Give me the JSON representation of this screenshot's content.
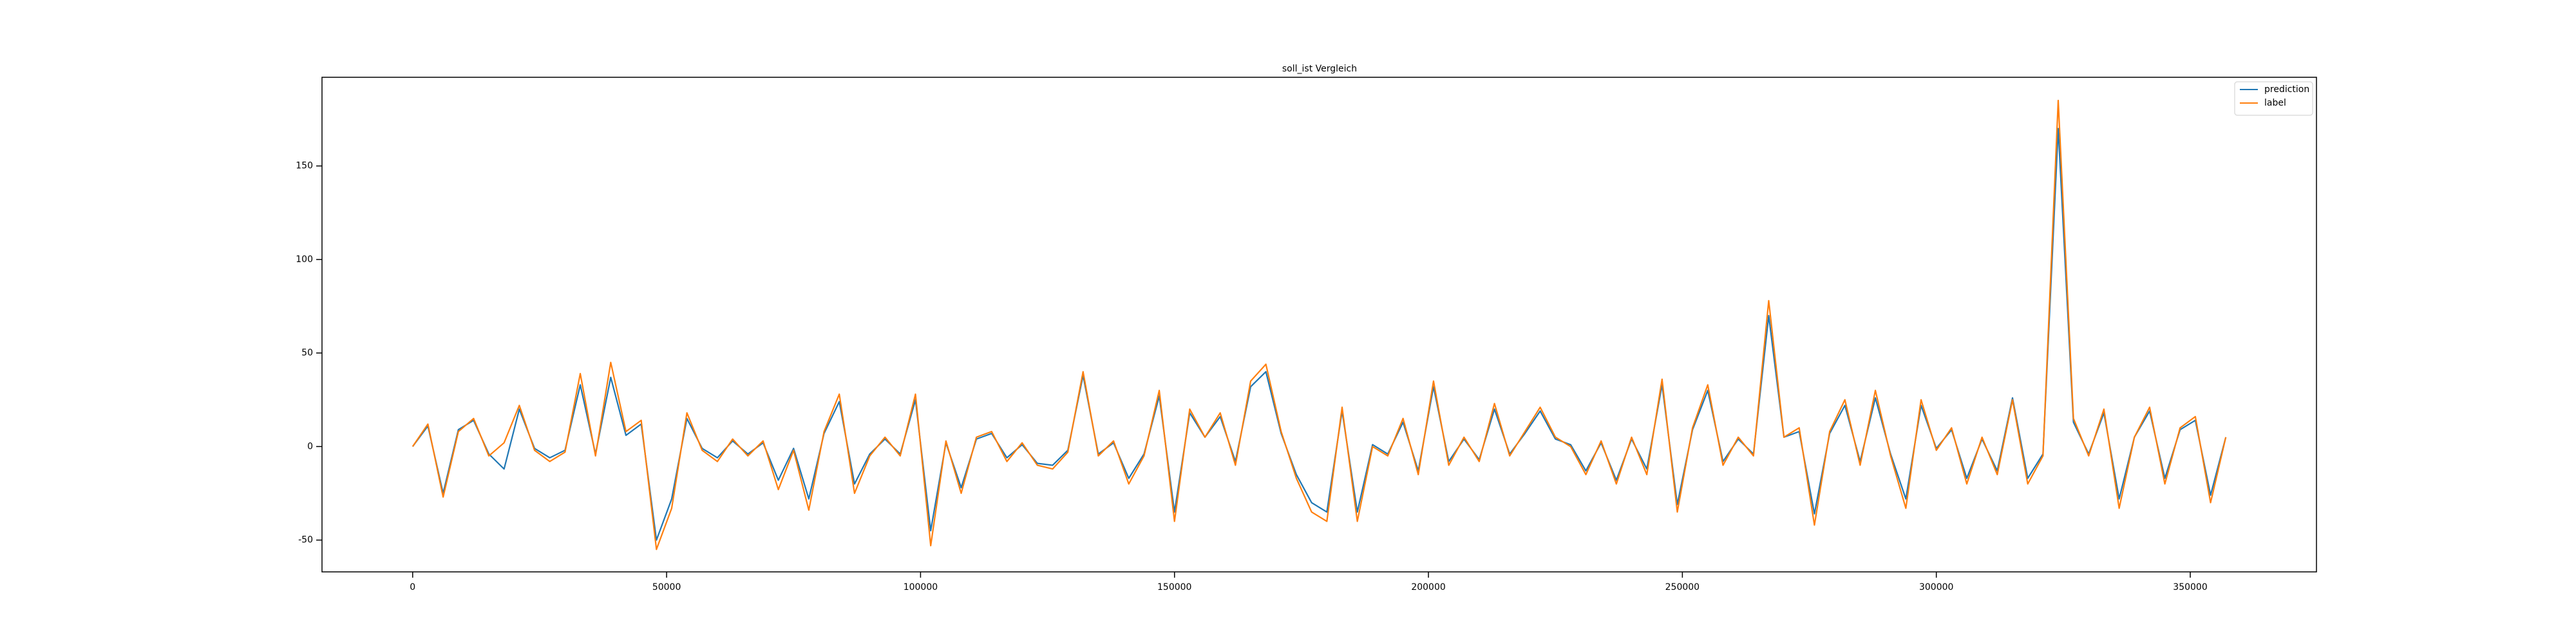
{
  "chart_data": {
    "type": "line",
    "title": "soll_ist Vergleich",
    "title_color": "#ff0000",
    "x": [
      0,
      3000,
      6000,
      9000,
      12000,
      15000,
      18000,
      21000,
      24000,
      27000,
      30000,
      33000,
      36000,
      39000,
      42000,
      45000,
      48000,
      51000,
      54000,
      57000,
      60000,
      63000,
      66000,
      69000,
      72000,
      75000,
      78000,
      81000,
      84000,
      87000,
      90000,
      93000,
      96000,
      99000,
      102000,
      105000,
      108000,
      111000,
      114000,
      117000,
      120000,
      123000,
      126000,
      129000,
      132000,
      135000,
      138000,
      141000,
      144000,
      147000,
      150000,
      153000,
      156000,
      159000,
      162000,
      165000,
      168000,
      171000,
      174000,
      177000,
      180000,
      183000,
      186000,
      189000,
      192000,
      195000,
      198000,
      201000,
      204000,
      207000,
      210000,
      213000,
      216000,
      219000,
      222000,
      225000,
      228000,
      231000,
      234000,
      237000,
      240000,
      243000,
      246000,
      249000,
      252000,
      255000,
      258000,
      261000,
      264000,
      267000,
      270000,
      273000,
      276000,
      279000,
      282000,
      285000,
      288000,
      291000,
      294000,
      297000,
      300000,
      303000,
      306000,
      309000,
      312000,
      315000,
      318000,
      321000,
      324000,
      327000,
      330000,
      333000,
      336000,
      339000,
      342000,
      345000,
      348000,
      351000,
      354000,
      357000
    ],
    "series": [
      {
        "name": "prediction",
        "color": "#1f77b4",
        "values": [
          0,
          11,
          -25,
          9,
          14,
          -4,
          -12,
          20,
          -1,
          -6,
          -2,
          33,
          -4,
          37,
          6,
          12,
          -50,
          -28,
          15,
          -1,
          -6,
          3,
          -4,
          2,
          -18,
          -1,
          -28,
          7,
          24,
          -20,
          -4,
          4,
          -4,
          25,
          -45,
          2,
          -22,
          4,
          7,
          -6,
          1,
          -9,
          -10,
          -2,
          38,
          -4,
          2,
          -17,
          -4,
          27,
          -35,
          18,
          5,
          16,
          -8,
          32,
          40,
          7,
          -15,
          -30,
          -35,
          19,
          -35,
          1,
          -4,
          13,
          -13,
          32,
          -8,
          4,
          -7,
          20,
          -4,
          7,
          19,
          4,
          1,
          -13,
          2,
          -18,
          4,
          -12,
          33,
          -31,
          9,
          30,
          -8,
          4,
          -4,
          70,
          5,
          8,
          -36,
          7,
          22,
          -8,
          26,
          -4,
          -28,
          22,
          -1,
          9,
          -17,
          4,
          -13,
          26,
          -17,
          -4,
          170,
          13,
          -4,
          18,
          -28,
          5,
          19,
          -17,
          9,
          14,
          -26,
          5
        ]
      },
      {
        "name": "label",
        "color": "#ff7f0e",
        "values": [
          0,
          12,
          -27,
          8,
          15,
          -5,
          2,
          22,
          -2,
          -8,
          -3,
          39,
          -5,
          45,
          8,
          14,
          -55,
          -33,
          18,
          -2,
          -8,
          4,
          -5,
          3,
          -23,
          -2,
          -34,
          8,
          28,
          -25,
          -5,
          5,
          -5,
          28,
          -53,
          3,
          -25,
          5,
          8,
          -8,
          2,
          -10,
          -12,
          -3,
          40,
          -5,
          3,
          -20,
          -5,
          30,
          -40,
          20,
          5,
          18,
          -10,
          35,
          44,
          8,
          -17,
          -35,
          -40,
          21,
          -40,
          0,
          -5,
          15,
          -15,
          35,
          -10,
          5,
          -8,
          23,
          -5,
          8,
          21,
          5,
          0,
          -15,
          3,
          -20,
          5,
          -15,
          36,
          -35,
          10,
          33,
          -10,
          5,
          -5,
          78,
          5,
          10,
          -42,
          8,
          25,
          -10,
          30,
          -5,
          -33,
          25,
          -2,
          10,
          -20,
          5,
          -15,
          25,
          -20,
          -5,
          185,
          15,
          -5,
          20,
          -33,
          5,
          21,
          -20,
          10,
          16,
          -30,
          5
        ]
      }
    ],
    "xlim": [
      -17850,
      374850
    ],
    "ylim": [
      -67,
      197.4
    ],
    "xticks": [
      0,
      50000,
      100000,
      150000,
      200000,
      250000,
      300000,
      350000
    ],
    "yticks": [
      -50,
      0,
      50,
      100,
      150
    ],
    "legend": "upper right",
    "grid": false
  }
}
